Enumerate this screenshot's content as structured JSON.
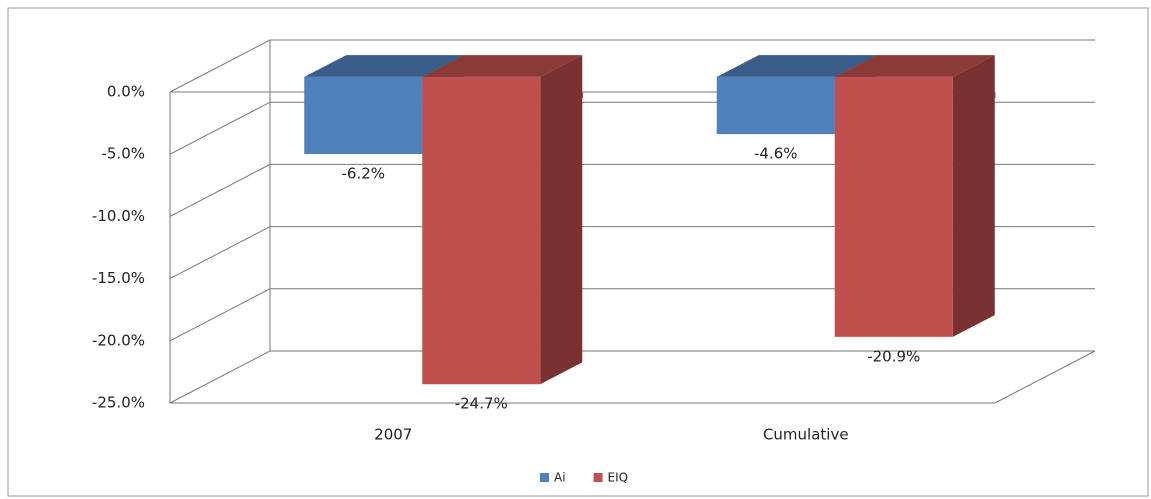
{
  "chart_data": {
    "type": "bar3d",
    "categories": [
      "2007",
      "Cumulative"
    ],
    "series": [
      {
        "name": "Ai",
        "color": "#4f81bd",
        "values": [
          -6.2,
          -4.6
        ],
        "value_labels": [
          "-6.2%",
          "-4.6%"
        ]
      },
      {
        "name": "EIQ",
        "color": "#c0504d",
        "values": [
          -24.7,
          -20.9
        ],
        "value_labels": [
          "-24.7%",
          "-20.9%"
        ]
      }
    ],
    "ylim": [
      -25,
      0
    ],
    "yticks": [
      {
        "value": 0,
        "label": "0.0%"
      },
      {
        "value": -5,
        "label": "-5.0%"
      },
      {
        "value": -10,
        "label": "-10.0%"
      },
      {
        "value": -15,
        "label": "-15.0%"
      },
      {
        "value": -20,
        "label": "-20.0%"
      },
      {
        "value": -25,
        "label": "-25.0%"
      }
    ],
    "grid": true,
    "legend": "bottom"
  }
}
